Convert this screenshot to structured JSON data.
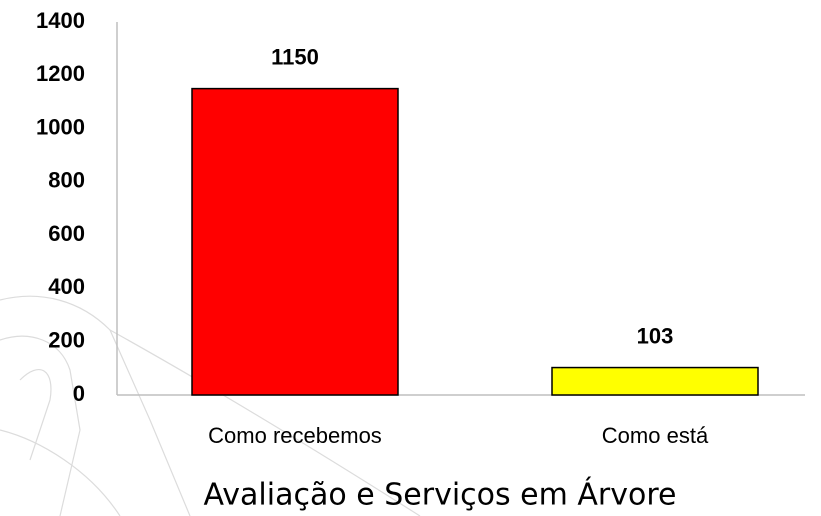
{
  "chart_data": {
    "type": "bar",
    "title": "Avaliação e Serviços em Árvore",
    "categories": [
      "Como recebemos",
      "Como está"
    ],
    "values": [
      1150,
      103
    ],
    "colors": [
      "#ff0000",
      "#ffff00"
    ],
    "ylim": [
      0,
      1400
    ],
    "yticks": [
      0,
      200,
      400,
      600,
      800,
      1000,
      1200,
      1400
    ],
    "grid": false
  }
}
